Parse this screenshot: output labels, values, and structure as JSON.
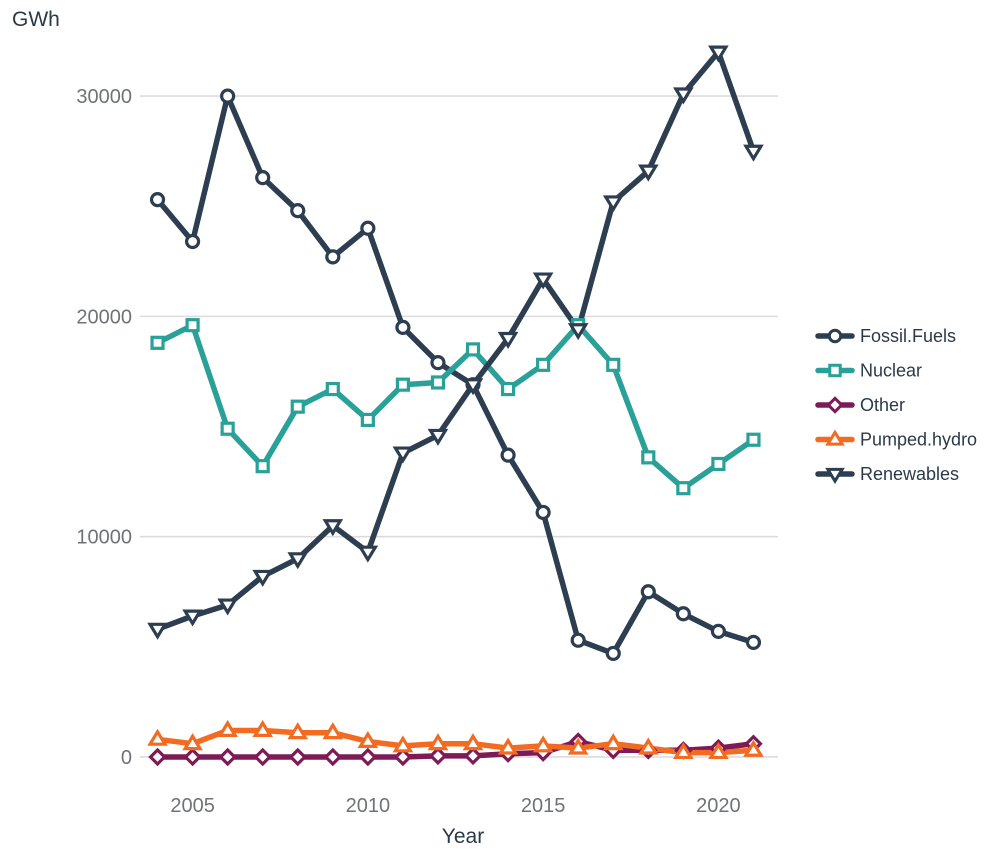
{
  "chart_data": {
    "type": "line",
    "title": "",
    "xlabel": "Year",
    "ylabel": "GWh",
    "xlim": [
      2003.5,
      2021.7
    ],
    "ylim": [
      -1500,
      33000
    ],
    "x_ticks": [
      2005,
      2010,
      2015,
      2020
    ],
    "y_ticks": [
      0,
      10000,
      20000,
      30000
    ],
    "grid": "horizontal major",
    "legend_position": "right",
    "x": [
      2004,
      2005,
      2006,
      2007,
      2008,
      2009,
      2010,
      2011,
      2012,
      2013,
      2014,
      2015,
      2016,
      2017,
      2018,
      2019,
      2020,
      2021
    ],
    "series": [
      {
        "name": "Fossil.Fuels",
        "color": "#2c3e50",
        "marker": "circle",
        "values": [
          25300,
          23400,
          30000,
          26300,
          24800,
          22700,
          24000,
          19500,
          17900,
          16900,
          13700,
          11100,
          5300,
          4700,
          7500,
          6500,
          5700,
          5200
        ]
      },
      {
        "name": "Nuclear",
        "color": "#2aa198",
        "marker": "square",
        "values": [
          18800,
          19600,
          14900,
          13200,
          15900,
          16700,
          15300,
          16900,
          17000,
          18500,
          16700,
          17800,
          19600,
          17800,
          13600,
          12200,
          13300,
          14400
        ]
      },
      {
        "name": "Other",
        "color": "#7e1a56",
        "marker": "diamond",
        "values": [
          0,
          0,
          0,
          0,
          0,
          0,
          0,
          0,
          50,
          50,
          150,
          200,
          700,
          300,
          300,
          300,
          400,
          600
        ]
      },
      {
        "name": "Pumped.hydro",
        "color": "#f26b21",
        "marker": "triangle-up",
        "values": [
          800,
          600,
          1200,
          1200,
          1100,
          1100,
          700,
          500,
          600,
          600,
          400,
          500,
          400,
          600,
          400,
          200,
          200,
          300
        ]
      },
      {
        "name": "Renewables",
        "color": "#2c3e50",
        "marker": "triangle-down",
        "values": [
          5800,
          6400,
          6900,
          8200,
          9000,
          10500,
          9300,
          13800,
          14600,
          16900,
          19000,
          21700,
          19400,
          25200,
          26600,
          30100,
          32000,
          27500
        ]
      }
    ]
  }
}
